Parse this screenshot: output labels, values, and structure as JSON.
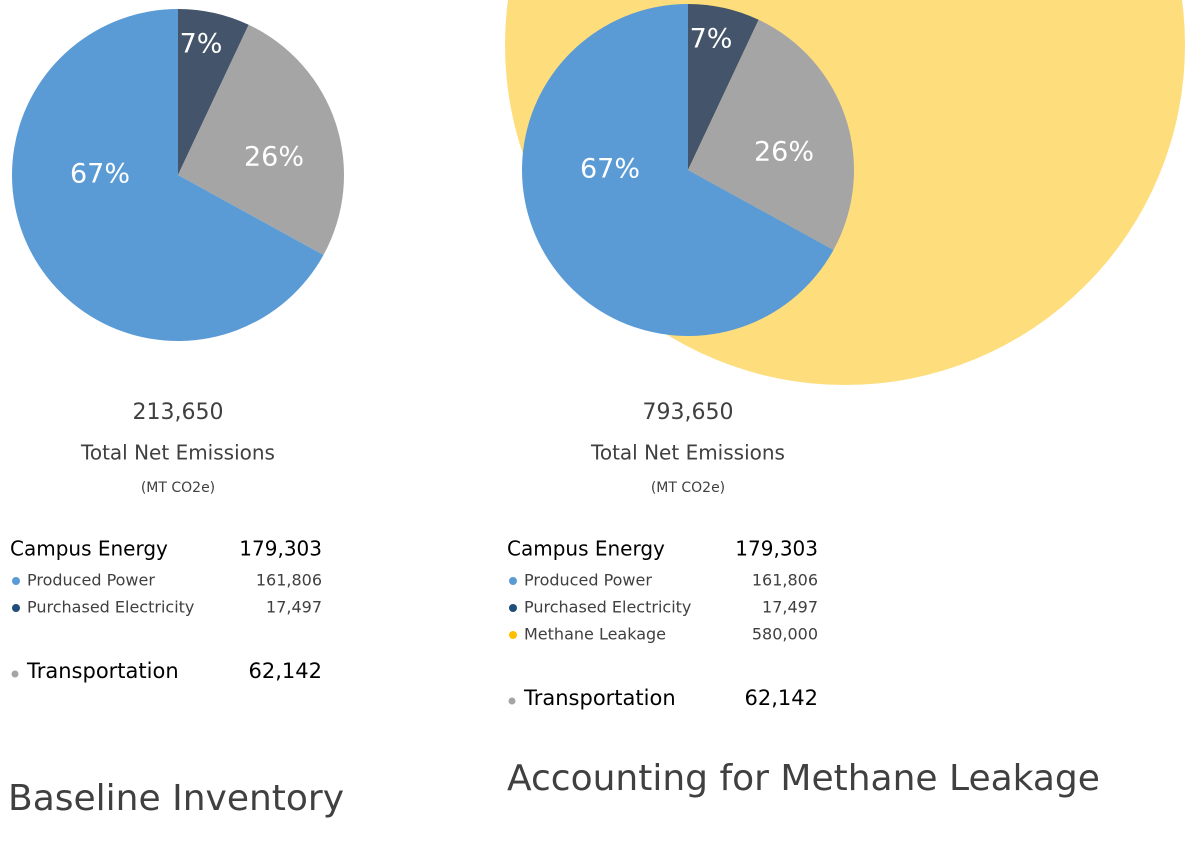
{
  "chart_data": [
    {
      "type": "pie",
      "title": "Baseline Inventory",
      "values": [
        67,
        7,
        26
      ],
      "value_labels": [
        "67%",
        "7%",
        "26%"
      ],
      "colors": [
        "#5b9bd5",
        "#44546a",
        "#a5a5a5"
      ],
      "total": "213,650",
      "total_label": "Total Net Emissions",
      "units": "(MT CO2e)",
      "legend": {
        "group": "Campus Energy",
        "group_value": "179,303",
        "items": [
          {
            "name": "Produced Power",
            "value": "161,806",
            "color": "#5b9bd5"
          },
          {
            "name": "Purchased Electricity",
            "value": "17,497",
            "color": "#1f4e79"
          }
        ],
        "other": {
          "name": "Transportation",
          "value": "62,142",
          "color": "#a5a5a5"
        }
      }
    },
    {
      "type": "pie",
      "title": "Accounting for Methane Leakage",
      "values": [
        67,
        7,
        26
      ],
      "value_labels": [
        "67%",
        "7%",
        "26%"
      ],
      "colors": [
        "#5b9bd5",
        "#44546a",
        "#a5a5a5"
      ],
      "bubble_color": "#fedd7c",
      "total": "793,650",
      "total_label": "Total Net Emissions",
      "units": "(MT CO2e)",
      "legend": {
        "group": "Campus Energy",
        "group_value": "179,303",
        "items": [
          {
            "name": "Produced Power",
            "value": "161,806",
            "color": "#5b9bd5"
          },
          {
            "name": "Purchased Electricity",
            "value": "17,497",
            "color": "#1f4e79"
          },
          {
            "name": "Methane Leakage",
            "value": "580,000",
            "color": "#ffc000"
          }
        ],
        "other": {
          "name": "Transportation",
          "value": "62,142",
          "color": "#a5a5a5"
        }
      }
    }
  ]
}
